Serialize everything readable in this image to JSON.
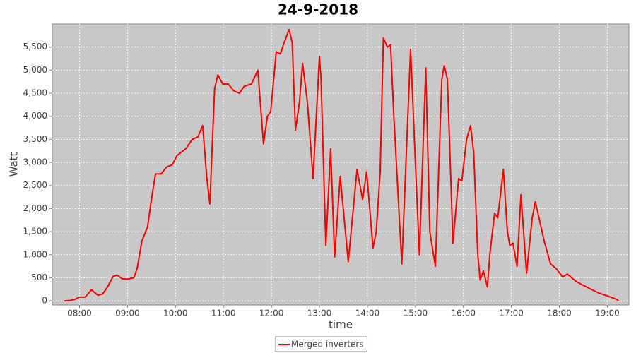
{
  "chart_data": {
    "type": "line",
    "title": "24-9-2018",
    "x_label": "time",
    "y_label": "Watt",
    "xlim": [
      "07:26",
      "19:27"
    ],
    "xticks": [
      "08:00",
      "09:00",
      "10:00",
      "11:00",
      "12:00",
      "13:00",
      "14:00",
      "15:00",
      "16:00",
      "17:00",
      "18:00",
      "19:00"
    ],
    "ylim": [
      -90,
      6000
    ],
    "yticks": [
      0,
      500,
      {
        "value": 1000,
        "label": "1,000"
      },
      {
        "value": 1500,
        "label": "1,500"
      },
      {
        "value": 2000,
        "label": "2,000"
      },
      {
        "value": 2500,
        "label": "2,500"
      },
      {
        "value": 3000,
        "label": "3,000"
      },
      {
        "value": 3500,
        "label": "3,500"
      },
      {
        "value": 4000,
        "label": "4,000"
      },
      {
        "value": 4500,
        "label": "4,500"
      },
      {
        "value": 5000,
        "label": "5,000"
      },
      {
        "value": 5500,
        "label": "5,500"
      }
    ],
    "grid": true,
    "legend": "bottom",
    "x": [
      "07:41",
      "07:49",
      "07:54",
      "08:00",
      "08:07",
      "08:15",
      "08:23",
      "08:29",
      "08:35",
      "08:42",
      "08:47",
      "08:53",
      "09:00",
      "09:08",
      "09:12",
      "09:18",
      "09:25",
      "09:30",
      "09:35",
      "09:42",
      "09:49",
      "09:56",
      "10:02",
      "10:13",
      "10:21",
      "10:28",
      "10:34",
      "10:39",
      "10:43",
      "10:46",
      "10:49",
      "10:53",
      "10:59",
      "11:06",
      "11:13",
      "11:20",
      "11:26",
      "11:35",
      "11:43",
      "11:50",
      "11:55",
      "11:59",
      "12:06",
      "12:11",
      "12:16",
      "12:22",
      "12:26",
      "12:30",
      "12:35",
      "12:39",
      "12:45",
      "12:52",
      "13:00",
      "13:02",
      "13:08",
      "13:14",
      "13:19",
      "13:26",
      "13:36",
      "13:47",
      "13:54",
      "13:59",
      "14:07",
      "14:11",
      "14:16",
      "14:20",
      "14:25",
      "14:29",
      "14:33",
      "14:43",
      "14:54",
      "15:00",
      "15:05",
      "15:13",
      "15:18",
      "15:25",
      "15:33",
      "15:36",
      "15:40",
      "15:47",
      "15:54",
      "15:58",
      "16:04",
      "16:09",
      "16:13",
      "16:18",
      "16:21",
      "16:25",
      "16:30",
      "16:33",
      "16:39",
      "16:43",
      "16:50",
      "16:55",
      "16:58",
      "17:02",
      "17:07",
      "17:12",
      "17:19",
      "17:26",
      "17:30",
      "17:41",
      "17:49",
      "17:56",
      "18:04",
      "18:10",
      "18:21",
      "18:34",
      "18:48",
      "19:01",
      "19:12",
      "19:14"
    ],
    "series": [
      {
        "name": "Merged inverters",
        "color": "#ff0000",
        "values": [
          0,
          10,
          30,
          80,
          80,
          240,
          120,
          150,
          300,
          530,
          560,
          480,
          470,
          500,
          700,
          1300,
          1600,
          2200,
          2750,
          2750,
          2900,
          2950,
          3150,
          3300,
          3500,
          3550,
          3800,
          2700,
          2100,
          3400,
          4600,
          4900,
          4700,
          4700,
          4550,
          4500,
          4650,
          4700,
          5000,
          3400,
          4000,
          4100,
          5400,
          5350,
          5600,
          5880,
          5600,
          3700,
          4300,
          5150,
          4300,
          2650,
          5300,
          4800,
          1200,
          3300,
          950,
          2700,
          850,
          2850,
          2200,
          2800,
          1150,
          1500,
          2800,
          5700,
          5500,
          5550,
          4000,
          800,
          5450,
          3000,
          1000,
          5050,
          1500,
          750,
          4800,
          5100,
          4800,
          1250,
          2650,
          2600,
          3500,
          3800,
          3200,
          1000,
          450,
          650,
          300,
          1000,
          1900,
          1800,
          2850,
          1500,
          1200,
          1250,
          750,
          2300,
          600,
          1800,
          2150,
          1300,
          800,
          700,
          520,
          580,
          420,
          300,
          180,
          100,
          30,
          0
        ]
      }
    ]
  }
}
